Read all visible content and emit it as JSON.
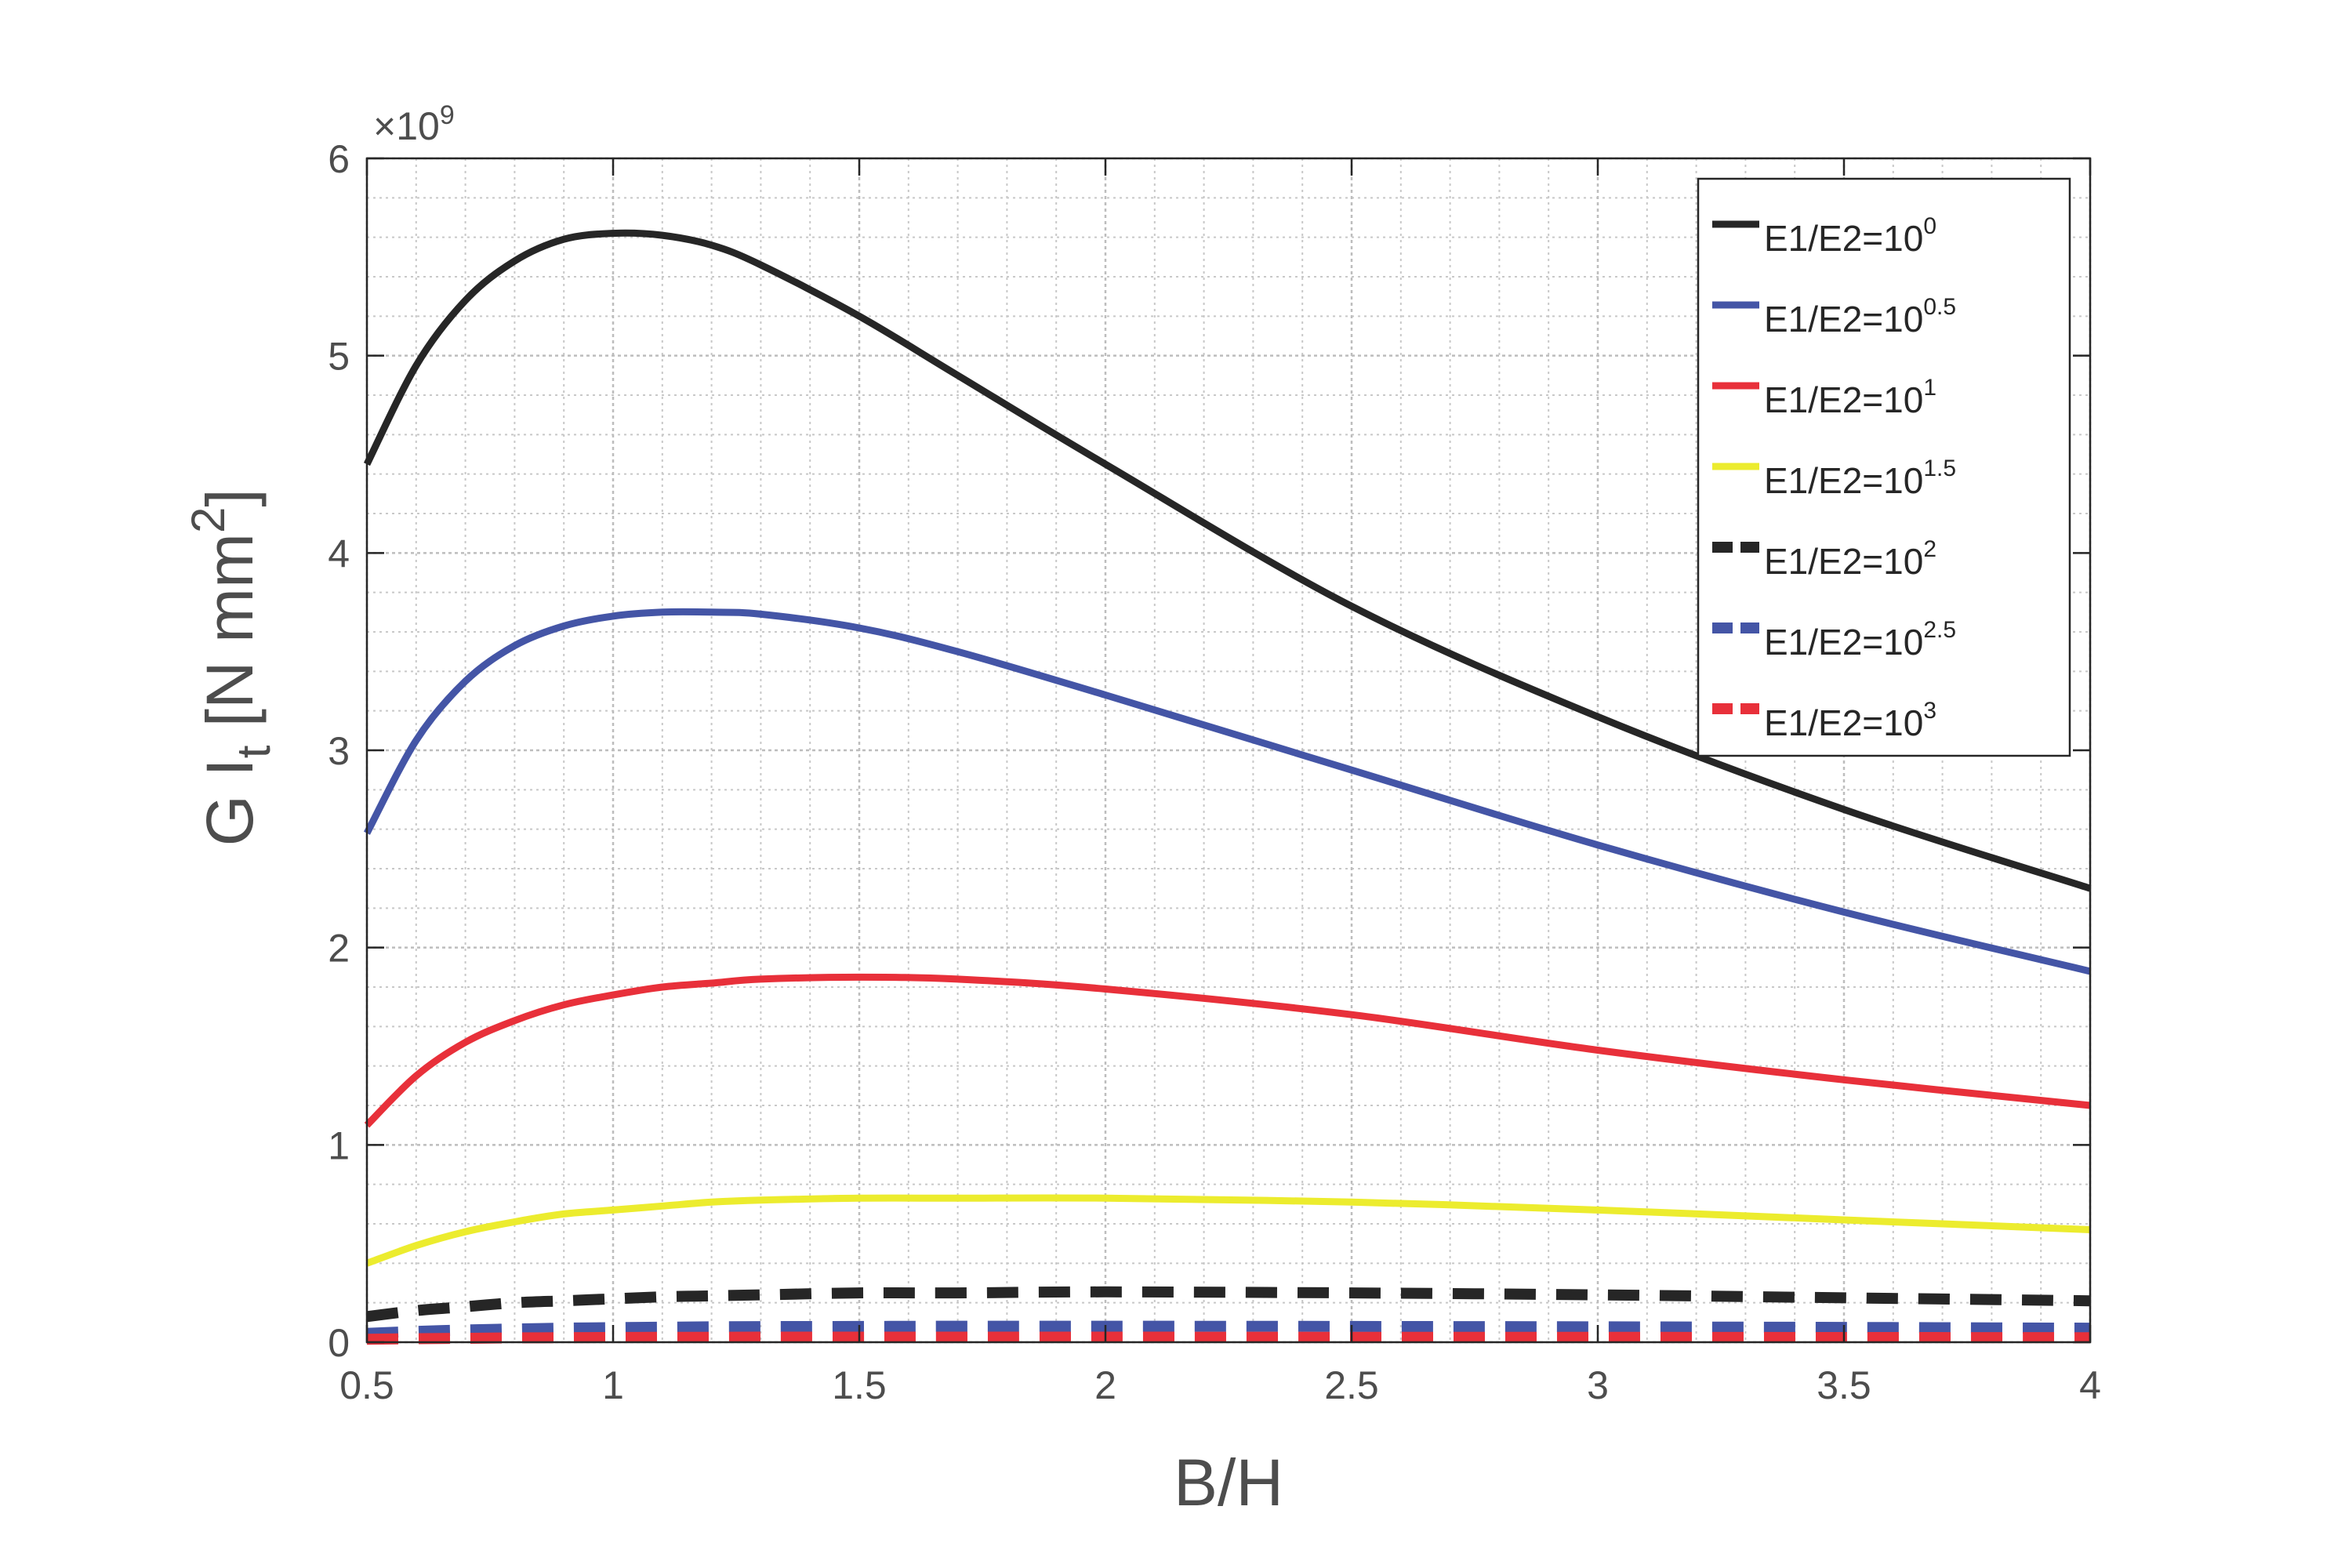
{
  "chart_data": {
    "type": "line",
    "title": "",
    "xlabel": "B/H",
    "ylabel": "G I",
    "ylabel_subscript": "t",
    "ylabel_units": " [N mm",
    "ylabel_units_sup": "2",
    "ylabel_units_close": "]",
    "y_exponent_prefix": "×10",
    "y_exponent": "9",
    "xlim": [
      0.5,
      4
    ],
    "ylim": [
      0,
      6
    ],
    "xticks": [
      0.5,
      1,
      1.5,
      2,
      2.5,
      3,
      3.5,
      4
    ],
    "xtick_labels": [
      "0.5",
      "1",
      "1.5",
      "2",
      "2.5",
      "3",
      "3.5",
      "4"
    ],
    "yticks": [
      0,
      1,
      2,
      3,
      4,
      5,
      6
    ],
    "ytick_labels": [
      "0",
      "1",
      "2",
      "3",
      "4",
      "5",
      "6"
    ],
    "grid": true,
    "minor_grid": true,
    "legend_position": "top-right",
    "x": [
      0.5,
      0.6,
      0.7,
      0.8,
      0.9,
      1.0,
      1.1,
      1.2,
      1.3,
      1.5,
      1.7,
      2.0,
      2.5,
      3.0,
      3.5,
      4.0
    ],
    "series": [
      {
        "name": "E1/E2=10",
        "name_sup": "0",
        "color": "#262626",
        "dash": false,
        "values": [
          4.45,
          4.95,
          5.28,
          5.48,
          5.59,
          5.62,
          5.61,
          5.56,
          5.46,
          5.2,
          4.9,
          4.45,
          3.73,
          3.17,
          2.7,
          2.3
        ]
      },
      {
        "name": "E1/E2=10",
        "name_sup": "0.5",
        "color": "#4455a6",
        "dash": false,
        "values": [
          2.58,
          3.05,
          3.35,
          3.53,
          3.63,
          3.68,
          3.7,
          3.7,
          3.69,
          3.62,
          3.5,
          3.28,
          2.9,
          2.52,
          2.18,
          1.88
        ]
      },
      {
        "name": "E1/E2=10",
        "name_sup": "1",
        "color": "#e8303a",
        "dash": false,
        "values": [
          1.1,
          1.35,
          1.52,
          1.63,
          1.71,
          1.76,
          1.8,
          1.82,
          1.84,
          1.85,
          1.84,
          1.79,
          1.66,
          1.48,
          1.33,
          1.2
        ]
      },
      {
        "name": "E1/E2=10",
        "name_sup": "1.5",
        "color": "#ecec2e",
        "dash": false,
        "values": [
          0.4,
          0.49,
          0.56,
          0.61,
          0.65,
          0.67,
          0.69,
          0.71,
          0.72,
          0.73,
          0.73,
          0.73,
          0.71,
          0.67,
          0.62,
          0.57
        ]
      },
      {
        "name": "E1/E2=10",
        "name_sup": "2",
        "color": "#262626",
        "dash": true,
        "values": [
          0.13,
          0.16,
          0.18,
          0.2,
          0.21,
          0.22,
          0.23,
          0.235,
          0.24,
          0.25,
          0.25,
          0.255,
          0.25,
          0.24,
          0.225,
          0.21
        ]
      },
      {
        "name": "E1/E2=10",
        "name_sup": "2.5",
        "color": "#4455a6",
        "dash": true,
        "values": [
          0.045,
          0.055,
          0.062,
          0.067,
          0.071,
          0.074,
          0.076,
          0.078,
          0.079,
          0.08,
          0.081,
          0.081,
          0.08,
          0.078,
          0.075,
          0.071
        ]
      },
      {
        "name": "E1/E2=10",
        "name_sup": "3",
        "color": "#e8303a",
        "dash": true,
        "values": [
          0.015,
          0.018,
          0.02,
          0.022,
          0.023,
          0.024,
          0.025,
          0.025,
          0.026,
          0.026,
          0.026,
          0.026,
          0.025,
          0.025,
          0.024,
          0.023
        ]
      }
    ]
  }
}
